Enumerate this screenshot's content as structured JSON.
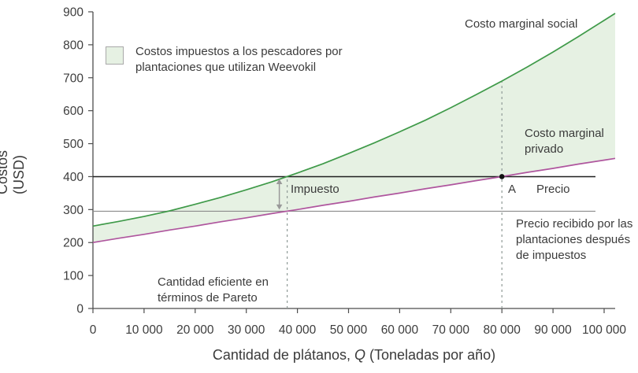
{
  "chart_data": {
    "type": "area",
    "title": "",
    "xlabel": "Cantidad de plátanos, Q (Toneladas por año)",
    "xlabel_parts": {
      "prefix": "Cantidad de plátanos, ",
      "q": "Q",
      "suffix": " (Toneladas por año)"
    },
    "ylabel": "Costos (USD)",
    "xlim": [
      0,
      100000
    ],
    "ylim": [
      0,
      900
    ],
    "x_ticks": [
      0,
      10000,
      20000,
      30000,
      40000,
      50000,
      60000,
      70000,
      80000,
      90000,
      100000
    ],
    "x_tick_labels": [
      "0",
      "10 000",
      "20 000",
      "30 000",
      "40 000",
      "50 000",
      "60 000",
      "70 000",
      "80 000",
      "90 000",
      "100 000"
    ],
    "y_ticks": [
      0,
      100,
      200,
      300,
      400,
      500,
      600,
      700,
      800,
      900
    ],
    "grid": false,
    "x": [
      0,
      5000,
      10000,
      15000,
      20000,
      25000,
      30000,
      35000,
      40000,
      45000,
      50000,
      55000,
      60000,
      65000,
      70000,
      75000,
      80000,
      85000,
      90000,
      95000,
      100000
    ],
    "series": [
      {
        "name": "Costo marginal social",
        "color": "#3f9a49",
        "values": [
          250,
          264,
          279,
          296,
          316,
          337,
          360,
          384,
          411,
          439,
          470,
          502,
          536,
          571,
          609,
          649,
          690,
          733,
          778,
          825,
          874
        ]
      },
      {
        "name": "Costo marginal privado",
        "color": "#af569e",
        "values": [
          200,
          213,
          225,
          238,
          250,
          263,
          275,
          288,
          300,
          313,
          325,
          338,
          350,
          363,
          375,
          388,
          400,
          413,
          425,
          438,
          450
        ]
      }
    ],
    "area_between": {
      "fill": "#e6f1e3",
      "label": "Costos impuestos a los pescadores por plantaciones que utilizan Weevokil"
    },
    "reference_lines": [
      {
        "name": "precio",
        "label": "Precio",
        "value": 400,
        "color": "#1f1f1f"
      },
      {
        "name": "precio-despues-de-impuestos",
        "label": "Precio recibido por las plantaciones después de impuestos",
        "value": 295,
        "color": "#8c8c8c"
      }
    ],
    "dashed_verticals": [
      {
        "name": "cantidad-eficiente-pareto",
        "x": 38000,
        "y_top": 400
      },
      {
        "name": "cantidad-equilibrio-mercado",
        "x": 80000,
        "y_top": 690
      }
    ],
    "point_a": {
      "label": "A",
      "x": 80000,
      "y": 400
    },
    "tax_arrow": {
      "label": "Impuesto",
      "x": 38000,
      "from": 295,
      "to": 400
    },
    "annotations": {
      "legend": "Costos impuestos a los pescadores por plantaciones que utilizan Weevokil",
      "pareto_quantity": "Cantidad eficiente en términos de Pareto"
    },
    "legend_position": "top-left",
    "axis_color": "#4d4d4d",
    "dashed_line_color": "#8f9a96",
    "arrow_color": "#999999"
  }
}
